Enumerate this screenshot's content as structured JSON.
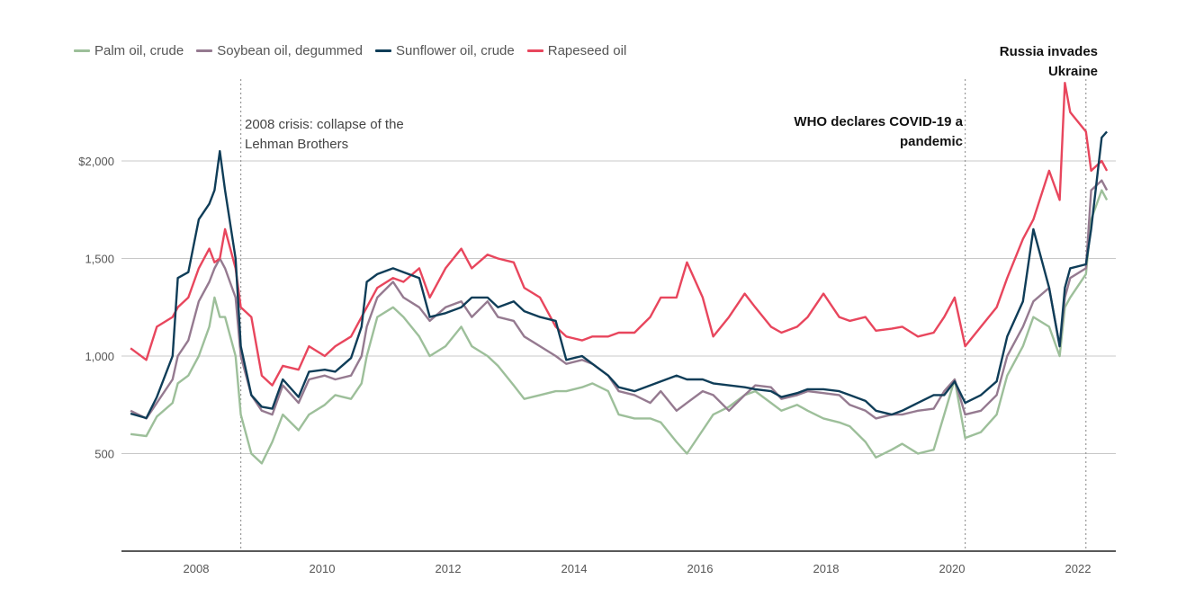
{
  "legend": [
    {
      "label": "Palm oil, crude",
      "color": "#9dbf9a"
    },
    {
      "label": "Soybean oil, degummed",
      "color": "#957a90"
    },
    {
      "label": "Sunflower oil, crude",
      "color": "#0f3d58"
    },
    {
      "label": "Rapeseed oil",
      "color": "#e8465d"
    }
  ],
  "annotations": {
    "lehman": {
      "line1": "2008 crisis: collapse of the",
      "line2": "Lehman Brothers",
      "date": "2008-09"
    },
    "covid": {
      "line1": "WHO declares COVID-19 a",
      "line2": "pandemic",
      "date": "2020-03"
    },
    "russia": {
      "line1": "Russia invades",
      "line2": "Ukraine",
      "date": "2022-02"
    }
  },
  "chart_data": {
    "type": "line",
    "title": "",
    "xlabel": "",
    "ylabel": "",
    "ylim": [
      0,
      2400
    ],
    "grid": true,
    "legend_position": "top-left",
    "y_ticks": [
      {
        "value": 500,
        "label": "500"
      },
      {
        "value": 1000,
        "label": "1,000"
      },
      {
        "value": 1500,
        "label": "1,500"
      },
      {
        "value": 2000,
        "label": "$2,000"
      }
    ],
    "x_ticks": [
      "2008",
      "2010",
      "2012",
      "2014",
      "2016",
      "2018",
      "2020",
      "2022"
    ],
    "x": [
      "2006-12",
      "2007-03",
      "2007-05",
      "2007-08",
      "2007-09",
      "2007-11",
      "2008-01",
      "2008-03",
      "2008-04",
      "2008-05",
      "2008-06",
      "2008-08",
      "2008-09",
      "2008-11",
      "2009-01",
      "2009-03",
      "2009-05",
      "2009-08",
      "2009-10",
      "2010-01",
      "2010-03",
      "2010-06",
      "2010-08",
      "2010-09",
      "2010-11",
      "2011-02",
      "2011-04",
      "2011-07",
      "2011-09",
      "2011-12",
      "2012-03",
      "2012-05",
      "2012-08",
      "2012-10",
      "2013-01",
      "2013-03",
      "2013-06",
      "2013-09",
      "2013-11",
      "2014-02",
      "2014-04",
      "2014-07",
      "2014-09",
      "2014-12",
      "2015-03",
      "2015-05",
      "2015-08",
      "2015-10",
      "2016-01",
      "2016-03",
      "2016-06",
      "2016-09",
      "2016-11",
      "2017-02",
      "2017-04",
      "2017-07",
      "2017-09",
      "2017-12",
      "2018-03",
      "2018-05",
      "2018-08",
      "2018-10",
      "2019-01",
      "2019-03",
      "2019-06",
      "2019-09",
      "2019-11",
      "2020-01",
      "2020-03",
      "2020-06",
      "2020-09",
      "2020-11",
      "2021-02",
      "2021-04",
      "2021-07",
      "2021-09",
      "2021-10",
      "2021-11",
      "2022-02",
      "2022-03",
      "2022-05",
      "2022-06"
    ],
    "series": [
      {
        "name": "Palm oil, crude",
        "color": "#9dbf9a",
        "values": [
          600,
          590,
          690,
          760,
          860,
          900,
          1000,
          1150,
          1300,
          1200,
          1200,
          1000,
          700,
          500,
          450,
          560,
          700,
          620,
          700,
          750,
          800,
          780,
          860,
          1000,
          1200,
          1250,
          1200,
          1100,
          1000,
          1050,
          1150,
          1050,
          1000,
          950,
          850,
          780,
          800,
          820,
          820,
          840,
          860,
          820,
          700,
          680,
          680,
          660,
          560,
          500,
          620,
          700,
          740,
          800,
          820,
          760,
          720,
          750,
          720,
          680,
          660,
          640,
          560,
          480,
          520,
          550,
          500,
          520,
          700,
          880,
          580,
          610,
          700,
          900,
          1050,
          1200,
          1150,
          1000,
          1250,
          1300,
          1420,
          1700,
          1850,
          1800
        ]
      },
      {
        "name": "Soybean oil, degummed",
        "color": "#957a90",
        "values": [
          720,
          680,
          760,
          880,
          1000,
          1080,
          1280,
          1380,
          1450,
          1500,
          1450,
          1300,
          1000,
          800,
          720,
          700,
          850,
          760,
          880,
          900,
          880,
          900,
          1000,
          1150,
          1300,
          1380,
          1300,
          1250,
          1180,
          1250,
          1280,
          1200,
          1280,
          1200,
          1180,
          1100,
          1050,
          1000,
          960,
          980,
          960,
          900,
          820,
          800,
          760,
          820,
          720,
          760,
          820,
          800,
          720,
          800,
          850,
          840,
          780,
          800,
          820,
          810,
          800,
          750,
          720,
          680,
          700,
          700,
          720,
          730,
          820,
          880,
          700,
          720,
          800,
          1000,
          1150,
          1280,
          1350,
          1050,
          1300,
          1400,
          1450,
          1850,
          1900,
          1850
        ]
      },
      {
        "name": "Rapeseed oil",
        "color": "#e8465d",
        "values": [
          1040,
          980,
          1150,
          1200,
          1250,
          1300,
          1450,
          1550,
          1480,
          1500,
          1650,
          1450,
          1250,
          1200,
          900,
          850,
          950,
          930,
          1050,
          1000,
          1050,
          1100,
          1200,
          1250,
          1350,
          1400,
          1380,
          1450,
          1300,
          1450,
          1550,
          1450,
          1520,
          1500,
          1480,
          1350,
          1300,
          1150,
          1100,
          1080,
          1100,
          1100,
          1120,
          1120,
          1200,
          1300,
          1300,
          1480,
          1300,
          1100,
          1200,
          1320,
          1250,
          1150,
          1120,
          1150,
          1200,
          1320,
          1200,
          1180,
          1200,
          1130,
          1140,
          1150,
          1100,
          1120,
          1200,
          1300,
          1050,
          1150,
          1250,
          1400,
          1600,
          1700,
          1950,
          1800,
          2400,
          2250,
          2150,
          1950,
          2000,
          1950
        ]
      },
      {
        "name": "Sunflower oil, crude",
        "color": "#0f3d58",
        "values": [
          705,
          682,
          790,
          1000,
          1400,
          1430,
          1700,
          1780,
          1850,
          2050,
          1850,
          1500,
          1050,
          800,
          740,
          730,
          880,
          790,
          920,
          930,
          920,
          990,
          1150,
          1380,
          1420,
          1450,
          1430,
          1400,
          1200,
          1220,
          1250,
          1300,
          1300,
          1250,
          1280,
          1230,
          1200,
          1180,
          980,
          1000,
          960,
          900,
          840,
          820,
          850,
          870,
          900,
          880,
          880,
          860,
          850,
          840,
          830,
          820,
          790,
          810,
          830,
          830,
          820,
          800,
          770,
          720,
          700,
          720,
          760,
          800,
          800,
          870,
          760,
          800,
          870,
          1100,
          1280,
          1650,
          1350,
          1050,
          1350,
          1450,
          1470,
          1650,
          2120,
          2150
        ]
      }
    ]
  }
}
